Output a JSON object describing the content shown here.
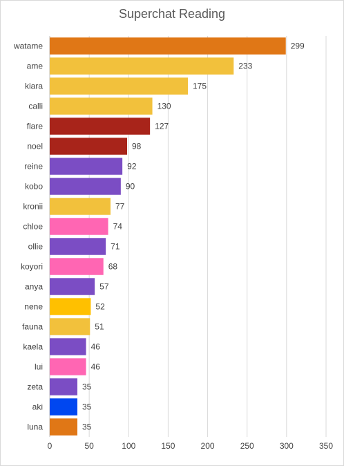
{
  "chart_data": {
    "type": "bar",
    "orientation": "horizontal",
    "title": "Superchat Reading",
    "xlim": [
      0,
      350
    ],
    "x_ticks": [
      0,
      50,
      100,
      150,
      200,
      250,
      300,
      350
    ],
    "grid": "vertical",
    "legend": "none",
    "data_labels": true,
    "categories": [
      "watame",
      "ame",
      "kiara",
      "calli",
      "flare",
      "noel",
      "reine",
      "kobo",
      "kronii",
      "chloe",
      "ollie",
      "koyori",
      "anya",
      "nene",
      "fauna",
      "kaela",
      "lui",
      "zeta",
      "aki",
      "luna"
    ],
    "values": [
      299,
      233,
      175,
      130,
      127,
      98,
      92,
      90,
      77,
      74,
      71,
      68,
      57,
      52,
      51,
      46,
      46,
      35,
      35,
      35
    ],
    "colors": [
      "#e07716",
      "#f2c13c",
      "#f2c13c",
      "#f2c13c",
      "#a8241a",
      "#a8241a",
      "#7b4dc4",
      "#7b4dc4",
      "#f2c13c",
      "#ff66b3",
      "#7b4dc4",
      "#ff66b3",
      "#7b4dc4",
      "#ffc000",
      "#f2c13c",
      "#7b4dc4",
      "#ff66b3",
      "#7b4dc4",
      "#0047f0",
      "#e07716"
    ]
  }
}
